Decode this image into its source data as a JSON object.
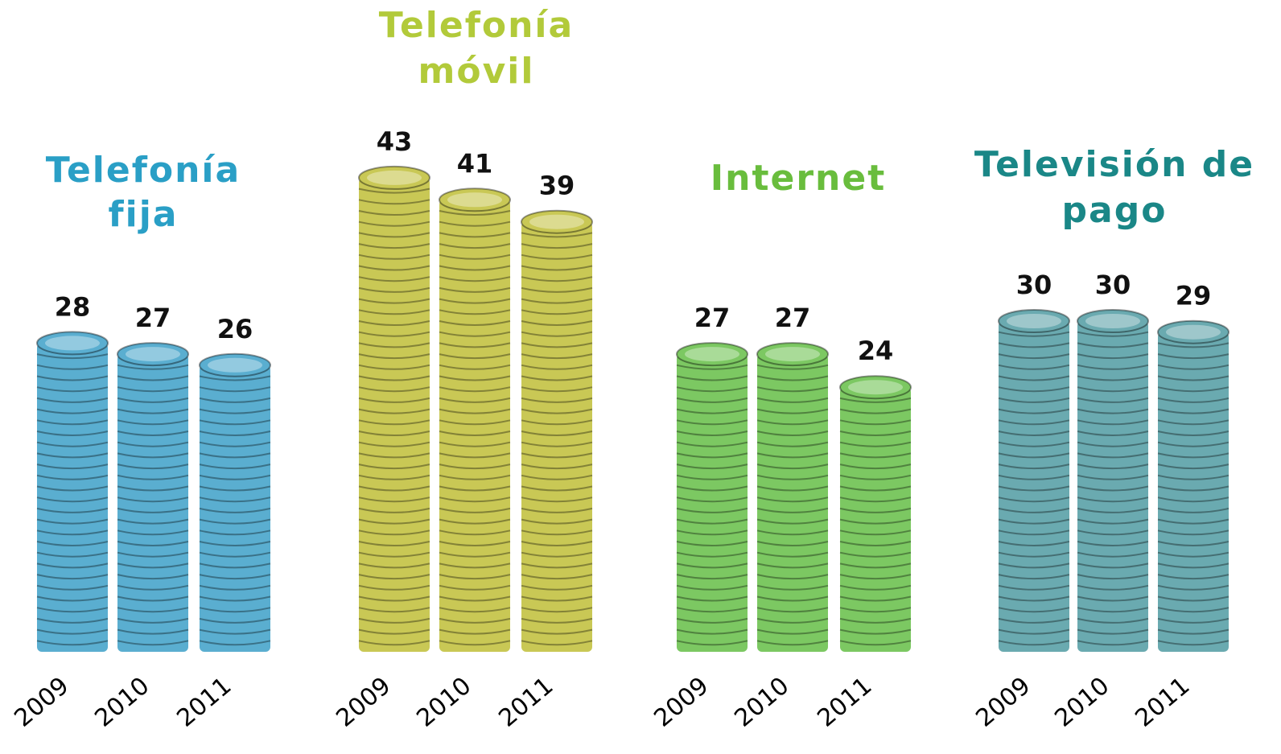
{
  "chart_data": [
    {
      "type": "bar",
      "title": [
        "Telefonía",
        "fija"
      ],
      "title_color": "#2a9fc6",
      "color": "#5aaed0",
      "categories": [
        "2009",
        "2010",
        "2011"
      ],
      "values": [
        28,
        27,
        26
      ]
    },
    {
      "type": "bar",
      "title": [
        "Telefonía",
        "móvil"
      ],
      "title_color": "#b2ca3a",
      "color": "#c9c855",
      "categories": [
        "2009",
        "2010",
        "2011"
      ],
      "values": [
        43,
        41,
        39
      ]
    },
    {
      "type": "bar",
      "title": [
        "Internet"
      ],
      "title_color": "#69bd3d",
      "color": "#7cc862",
      "categories": [
        "2009",
        "2010",
        "2011"
      ],
      "values": [
        27,
        27,
        24
      ]
    },
    {
      "type": "bar",
      "title": [
        "Televisión de",
        "pago"
      ],
      "title_color": "#1a8787",
      "color": "#6aaab0",
      "categories": [
        "2009",
        "2010",
        "2011"
      ],
      "values": [
        30,
        30,
        29
      ]
    }
  ]
}
